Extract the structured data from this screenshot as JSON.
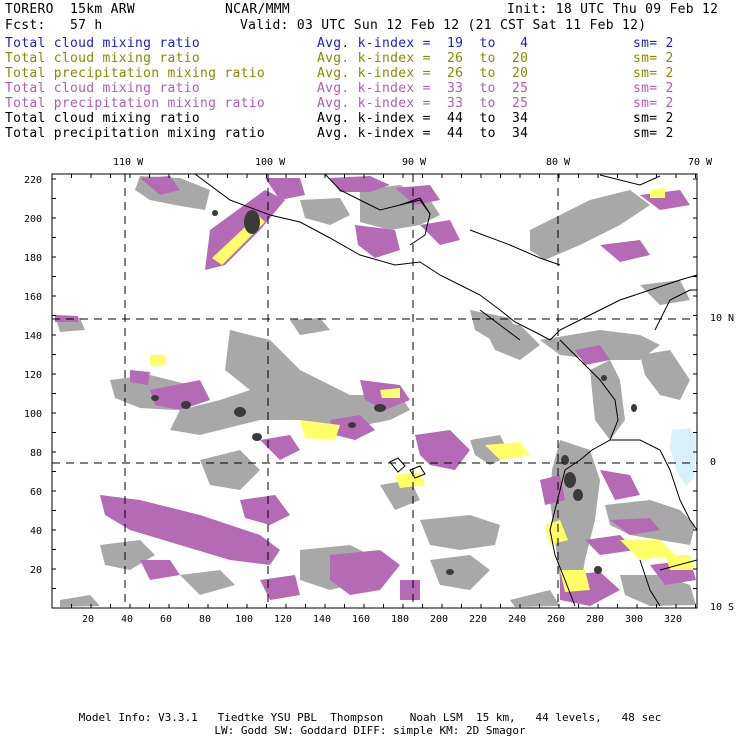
{
  "header": {
    "model": "TORERO  15km ARW",
    "center": "NCAR/MMM",
    "init": "Init: 18 UTC Thu 09 Feb 12",
    "fcst": "Fcst:   57 h",
    "valid": "Valid: 03 UTC Sun 12 Feb 12 (21 CST Sat 11 Feb 12)"
  },
  "legend": [
    {
      "field": "Total cloud mixing ratio",
      "kindex": "Avg. k-index =  19  to   4",
      "sm": "sm= 2",
      "color": "#1c1cc8"
    },
    {
      "field": "Total cloud mixing ratio",
      "kindex": "Avg. k-index =  26  to  20",
      "sm": "sm= 2",
      "color": "#8a8a00"
    },
    {
      "field": "Total precipitation mixing ratio",
      "kindex": "Avg. k-index =  26  to  20",
      "sm": "sm= 2",
      "color": "#8a8a00"
    },
    {
      "field": "Total cloud mixing ratio",
      "kindex": "Avg. k-index =  33  to  25",
      "sm": "sm= 2",
      "color": "#b35cb3"
    },
    {
      "field": "Total precipitation mixing ratio",
      "kindex": "Avg. k-index =  33  to  25",
      "sm": "sm= 2",
      "color": "#b35cb3"
    },
    {
      "field": "Total cloud mixing ratio",
      "kindex": "Avg. k-index =  44  to  34",
      "sm": "sm= 2",
      "color": "#000000"
    },
    {
      "field": "Total precipitation mixing ratio",
      "kindex": "Avg. k-index =  44  to  34",
      "sm": "sm= 2",
      "color": "#000000"
    }
  ],
  "axes": {
    "lon_labels": [
      "110 W",
      "100 W",
      "90 W",
      "80 W",
      "70 W"
    ],
    "lat_labels": [
      "10 N",
      "0",
      "10 S"
    ],
    "x_ticks": [
      "20",
      "40",
      "60",
      "80",
      "100",
      "120",
      "140",
      "160",
      "180",
      "200",
      "220",
      "240",
      "260",
      "280",
      "300",
      "320"
    ],
    "y_ticks": [
      "220",
      "200",
      "180",
      "160",
      "140",
      "120",
      "100",
      "80",
      "60",
      "40",
      "20"
    ]
  },
  "colors": {
    "cloud_gray": "#a8a8a8",
    "dark_gray": "#3a3a3a",
    "purple": "#b56ab5",
    "yellow": "#ffff66",
    "light_blue": "#d8f0f8"
  },
  "footer": {
    "line1": "Model Info: V3.3.1   Tiedtke YSU PBL  Thompson    Noah LSM  15 km,   44 levels,   48 sec",
    "line2": "LW: Godd SW: Goddard DIFF: simple KM: 2D Smagor"
  }
}
